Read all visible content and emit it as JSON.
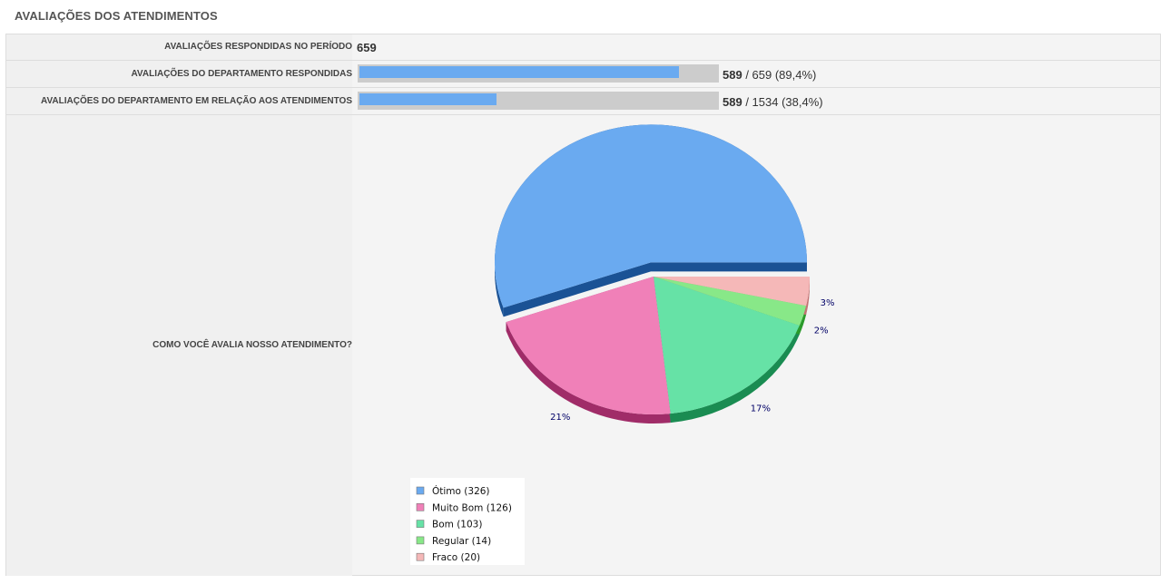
{
  "page": {
    "title": "AVALIAÇÕES DOS ATENDIMENTOS"
  },
  "rows": [
    {
      "label": "AVALIAÇÕES RESPONDIDAS NO PERÍODO",
      "value": "659"
    },
    {
      "label": "AVALIAÇÕES DO DEPARTAMENTO RESPONDIDAS",
      "progress": 0.894,
      "count": "589",
      "rest": " / 659 (89,4%)"
    },
    {
      "label": "AVALIAÇÕES DO DEPARTAMENTO EM RELAÇÃO AOS ATENDIMENTOS",
      "progress": 0.384,
      "count": "589",
      "rest": " / 1534 (38,4%)"
    }
  ],
  "question": {
    "label": "COMO VOCÊ AVALIA NOSSO ATENDIMENTO?"
  },
  "chart_data": {
    "type": "pie",
    "title": "",
    "legend_position": "bottom-left",
    "slices": [
      {
        "name": "Ótimo",
        "value": 326,
        "legend": "Ótimo (326)",
        "pct_label": "55%",
        "color": "#6aaaf0",
        "side": "#1a5295",
        "exploded": true
      },
      {
        "name": "Muito Bom",
        "value": 126,
        "legend": "Muito Bom (126)",
        "pct_label": "21%",
        "color": "#f080b8",
        "side": "#a02c68",
        "exploded": false
      },
      {
        "name": "Bom",
        "value": 103,
        "legend": "Bom (103)",
        "pct_label": "17%",
        "color": "#66e2a6",
        "side": "#1a8c52",
        "exploded": false
      },
      {
        "name": "Regular",
        "value": 14,
        "legend": "Regular (14)",
        "pct_label": "2%",
        "color": "#88e888",
        "side": "#2a9a2a",
        "exploded": false
      },
      {
        "name": "Fraco",
        "value": 20,
        "legend": "Fraco (20)",
        "pct_label": "3%",
        "color": "#f5b8b8",
        "side": "#c07070",
        "exploded": false
      }
    ],
    "label_color": "#000066"
  }
}
